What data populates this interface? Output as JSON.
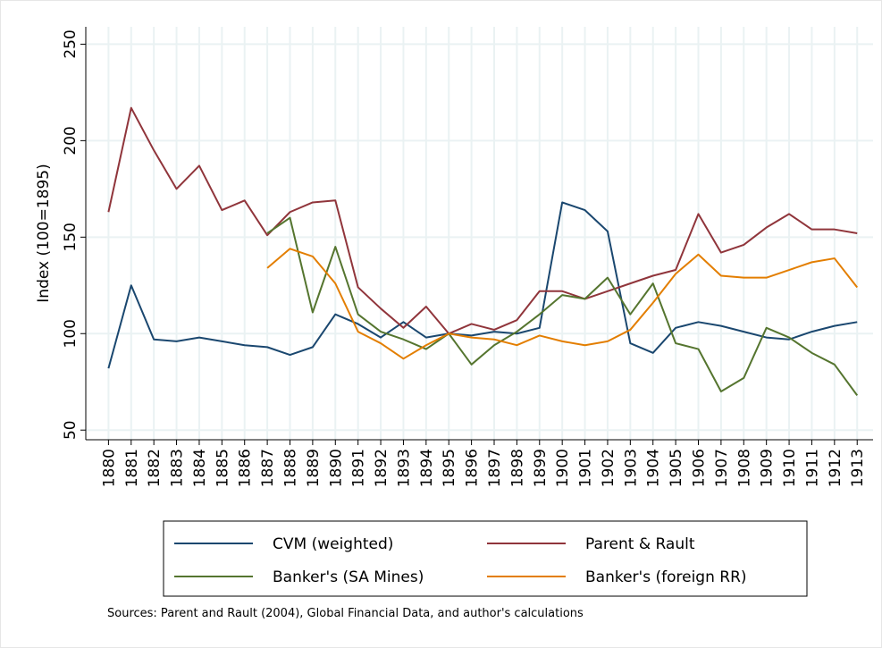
{
  "chart_data": {
    "type": "line",
    "y_label": "Index (100=1895)",
    "source": "Sources: Parent and Rault (2004), Global Financial Data, and author's calculations",
    "x": [
      1880,
      1881,
      1882,
      1883,
      1884,
      1885,
      1886,
      1887,
      1888,
      1889,
      1890,
      1891,
      1892,
      1893,
      1894,
      1895,
      1896,
      1897,
      1898,
      1899,
      1900,
      1901,
      1902,
      1903,
      1904,
      1905,
      1906,
      1907,
      1908,
      1909,
      1910,
      1911,
      1912,
      1913
    ],
    "xlim": [
      1879,
      1913.7
    ],
    "xticks": [
      1880,
      1881,
      1882,
      1883,
      1884,
      1885,
      1886,
      1887,
      1888,
      1889,
      1890,
      1891,
      1892,
      1893,
      1894,
      1895,
      1896,
      1897,
      1898,
      1899,
      1900,
      1901,
      1902,
      1903,
      1904,
      1905,
      1906,
      1907,
      1908,
      1909,
      1910,
      1911,
      1912,
      1913
    ],
    "ylim": [
      45,
      259
    ],
    "yticks": [
      50,
      100,
      150,
      200,
      250
    ],
    "grid": true,
    "series": [
      {
        "name": "CVM (weighted)",
        "color": "#1a476f",
        "values": [
          82,
          125,
          97,
          96,
          98,
          96,
          94,
          93,
          89,
          93,
          110,
          105,
          98,
          106,
          98,
          100,
          99,
          101,
          100,
          103,
          168,
          164,
          153,
          95,
          90,
          103,
          106,
          104,
          101,
          98,
          97,
          101,
          104,
          106
        ]
      },
      {
        "name": "Parent & Rault",
        "color": "#90353b",
        "values": [
          163,
          217,
          195,
          175,
          187,
          164,
          169,
          151,
          163,
          168,
          169,
          124,
          113,
          103,
          114,
          100,
          105,
          102,
          107,
          122,
          122,
          118,
          122,
          126,
          130,
          133,
          162,
          142,
          146,
          155,
          162,
          154,
          154,
          152
        ]
      },
      {
        "name": "Banker's (SA Mines)",
        "color": "#55752f",
        "values": [
          null,
          null,
          null,
          null,
          null,
          null,
          null,
          152,
          160,
          111,
          145,
          110,
          101,
          97,
          92,
          100,
          84,
          94,
          101,
          110,
          120,
          118,
          129,
          110,
          126,
          95,
          92,
          70,
          77,
          103,
          98,
          90,
          84,
          68
        ]
      },
      {
        "name": "Banker's (foreign RR)",
        "color": "#e37e00",
        "values": [
          null,
          null,
          null,
          null,
          null,
          null,
          null,
          134,
          144,
          140,
          126,
          101,
          95,
          87,
          94,
          100,
          98,
          97,
          94,
          99,
          96,
          94,
          96,
          102,
          116,
          131,
          141,
          130,
          129,
          129,
          133,
          137,
          139,
          124
        ]
      }
    ]
  }
}
